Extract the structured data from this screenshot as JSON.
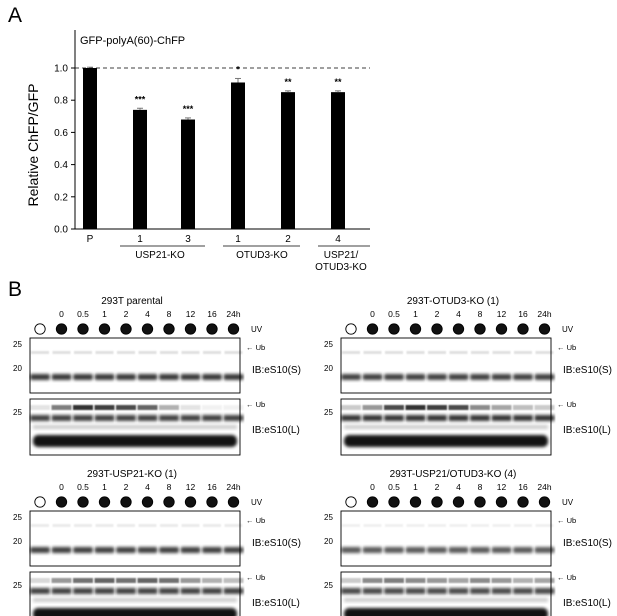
{
  "panel_a": {
    "letter": "A",
    "construct": "GFP-polyA(60)-ChFP",
    "y_axis_label": "Relative ChFP/GFP",
    "group_labels": [
      "USP21-KO",
      "OTUD3-KO",
      "USP21/",
      "OTUD3-KO"
    ],
    "chart_data": {
      "type": "bar",
      "categories": [
        "P",
        "1",
        "3",
        "1",
        "2",
        "4"
      ],
      "values": [
        1.0,
        0.74,
        0.68,
        0.91,
        0.85,
        0.85
      ],
      "errors": [
        0.005,
        0.01,
        0.01,
        0.025,
        0.008,
        0.008
      ],
      "significance": [
        "",
        "***",
        "***",
        "*",
        "**",
        "**"
      ],
      "ylabel": "Relative ChFP/GFP",
      "ylim": [
        0,
        1.2
      ],
      "y_ticks": [
        "0.0",
        "0.2",
        "0.4",
        "0.6",
        "0.8",
        "1.0"
      ],
      "reference_line": 1.0
    }
  },
  "panel_b": {
    "letter": "B",
    "uv_label": "UV",
    "timepoints": [
      "0",
      "0.5",
      "1",
      "2",
      "4",
      "8",
      "12",
      "16",
      "24h"
    ],
    "ub_label": "Ub",
    "mw_markers": [
      "25",
      "20"
    ],
    "blots": [
      {
        "title": "293T parental",
        "ib_short": "IB:eS10(S)",
        "ib_long": "IB:eS10(L)"
      },
      {
        "title": "293T-OTUD3-KO (1)",
        "ib_short": "IB:eS10(S)",
        "ib_long": "IB:eS10(L)"
      },
      {
        "title": "293T-USP21-KO (1)",
        "ib_short": "IB:eS10(S)",
        "ib_long": "IB:eS10(L)"
      },
      {
        "title": "293T-USP21/OTUD3-KO (4)",
        "ib_short": "IB:eS10(S)",
        "ib_long": "IB:eS10(L)"
      }
    ]
  }
}
